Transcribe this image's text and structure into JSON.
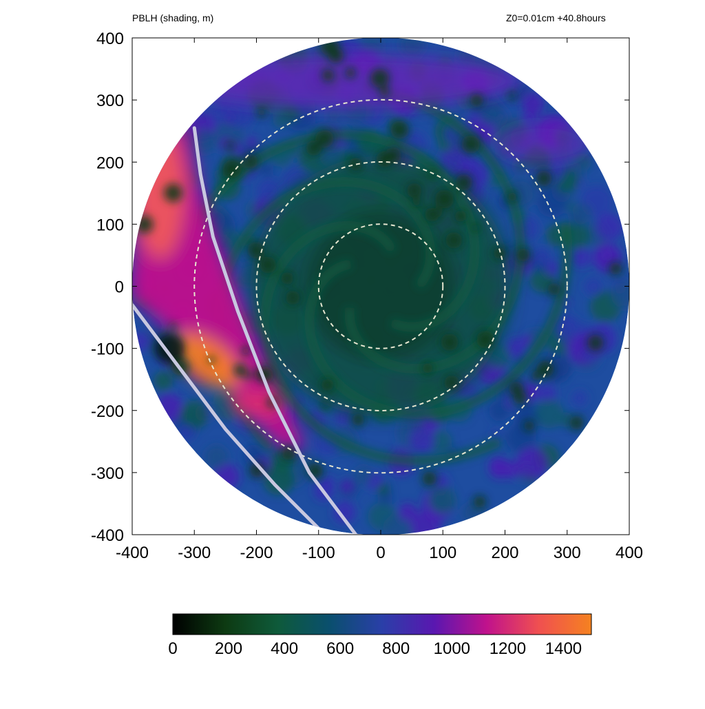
{
  "header": {
    "title_left": "PBLH (shading, m)",
    "title_right": "Z0=0.01cm  +40.8hours"
  },
  "chart_data": {
    "type": "heatmap",
    "title": "PBLH (shading, m)",
    "subtitle": "Z0=0.01cm  +40.8hours",
    "xlim": [
      -400,
      400
    ],
    "ylim": [
      -400,
      400
    ],
    "xticks": [
      -400,
      -300,
      -200,
      -100,
      0,
      100,
      200,
      300,
      400
    ],
    "yticks": [
      -400,
      -300,
      -200,
      -100,
      0,
      100,
      200,
      300,
      400
    ],
    "xtick_labels": [
      "-400",
      "-300",
      "-200",
      "-100",
      "0",
      "100",
      "200",
      "300",
      "400"
    ],
    "ytick_labels": [
      "-400",
      "-300",
      "-200",
      "-100",
      "0",
      "100",
      "200",
      "300",
      "400"
    ],
    "domain_radius": 400,
    "range_rings": [
      100,
      200,
      300
    ],
    "colorbar": {
      "min": 0,
      "max": 1500,
      "ticks": [
        0,
        200,
        400,
        600,
        800,
        1000,
        1200,
        1400
      ],
      "tick_labels": [
        "0",
        "200",
        "400",
        "600",
        "800",
        "1000",
        "1200",
        "1400"
      ],
      "colors": [
        "#000000",
        "#0d3a12",
        "#0e5a3a",
        "#0a4f6e",
        "#2a3fa8",
        "#5a17b0",
        "#c0128c",
        "#f05050",
        "#f58220"
      ]
    },
    "field_description_values": {
      "center_pblh": 450,
      "inner_ring_pblh": 520,
      "outer_pblh": 800,
      "southwest_band_max": 1450
    },
    "overlay_lines": [
      {
        "points": [
          [
            -300,
            255
          ],
          [
            -290,
            180
          ],
          [
            -270,
            80
          ],
          [
            -230,
            -40
          ],
          [
            -180,
            -170
          ],
          [
            -115,
            -300
          ],
          [
            -40,
            -400
          ]
        ]
      },
      {
        "points": [
          [
            -400,
            -30
          ],
          [
            -340,
            -110
          ],
          [
            -250,
            -230
          ],
          [
            -170,
            -320
          ],
          [
            -90,
            -400
          ]
        ]
      }
    ]
  }
}
